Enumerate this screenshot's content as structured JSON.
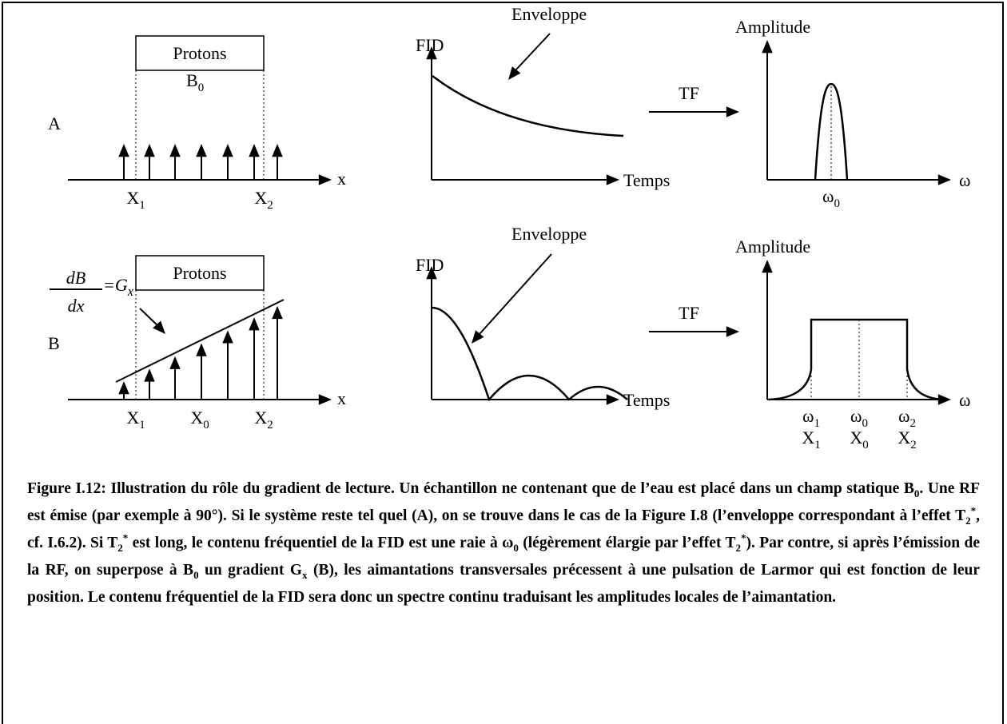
{
  "panels": [
    {
      "label": "A",
      "box": "Protons",
      "field": {
        "t": "B",
        "sub": "0"
      },
      "axis": "x",
      "positions": [
        {
          "t": "X",
          "sub": "1"
        },
        {
          "t": "X",
          "sub": "2"
        }
      ],
      "fid": {
        "axis_label": "FID",
        "annotation": "Enveloppe",
        "time": "Temps"
      },
      "transform": "TF",
      "spectrum": {
        "axis_label": "Amplitude",
        "axis": "ω",
        "ticks": [
          [
            {
              "t": "ω",
              "sub": "0"
            }
          ]
        ]
      }
    },
    {
      "label": "B",
      "box": "Protons",
      "field": {
        "t": "B",
        "sub": "0"
      },
      "axis": "x",
      "gradient": {
        "num": "dB",
        "den": "dx",
        "rhs": {
          "t": "=G",
          "sub": "x"
        }
      },
      "positions": [
        {
          "t": "X",
          "sub": "1"
        },
        {
          "t": "X",
          "sub": "0"
        },
        {
          "t": "X",
          "sub": "2"
        }
      ],
      "fid": {
        "axis_label": "FID",
        "annotation": "Enveloppe",
        "time": "Temps"
      },
      "transform": "TF",
      "spectrum": {
        "axis_label": "Amplitude",
        "axis": "ω",
        "ticks": [
          [
            {
              "t": "ω",
              "sub": "1"
            },
            {
              "t": "X",
              "sub": "1"
            }
          ],
          [
            {
              "t": "ω",
              "sub": "0"
            },
            {
              "t": "X",
              "sub": "0"
            }
          ],
          [
            {
              "t": "ω",
              "sub": "2"
            },
            {
              "t": "X",
              "sub": "2"
            }
          ]
        ]
      }
    }
  ],
  "caption": [
    {
      "t": "Figure I.12: Illustration du rôle du gradient de lecture. Un échantillon ne contenant que de l’eau est placé dans un champ statique B"
    },
    {
      "sub": "0"
    },
    {
      "t": ". Une RF est émise (par exemple à 90°). Si le système reste tel quel (A), on se trouve dans le cas de la Figure I.8 (l’enveloppe correspondant à l’effet T"
    },
    {
      "sub": "2"
    },
    {
      "sup": "*"
    },
    {
      "t": ", cf. I.6.2). Si T"
    },
    {
      "sub": "2"
    },
    {
      "sup": "*"
    },
    {
      "t": " est long, le contenu fréquentiel de la FID est une raie à ω"
    },
    {
      "sub": "0"
    },
    {
      "t": " (légèrement élargie par l’effet T"
    },
    {
      "sub": "2"
    },
    {
      "sup": "*"
    },
    {
      "t": "). Par contre, si après l’émission de la RF, on superpose à B"
    },
    {
      "sub": "0"
    },
    {
      "t": " un gradient G"
    },
    {
      "sub": "x"
    },
    {
      "t": " (B), les aimantations transversales précessent à une pulsation de Larmor qui est fonction de leur position. Le contenu fréquentiel de la FID sera donc un spectre continu traduisant les amplitudes locales de l’aimantation."
    }
  ]
}
